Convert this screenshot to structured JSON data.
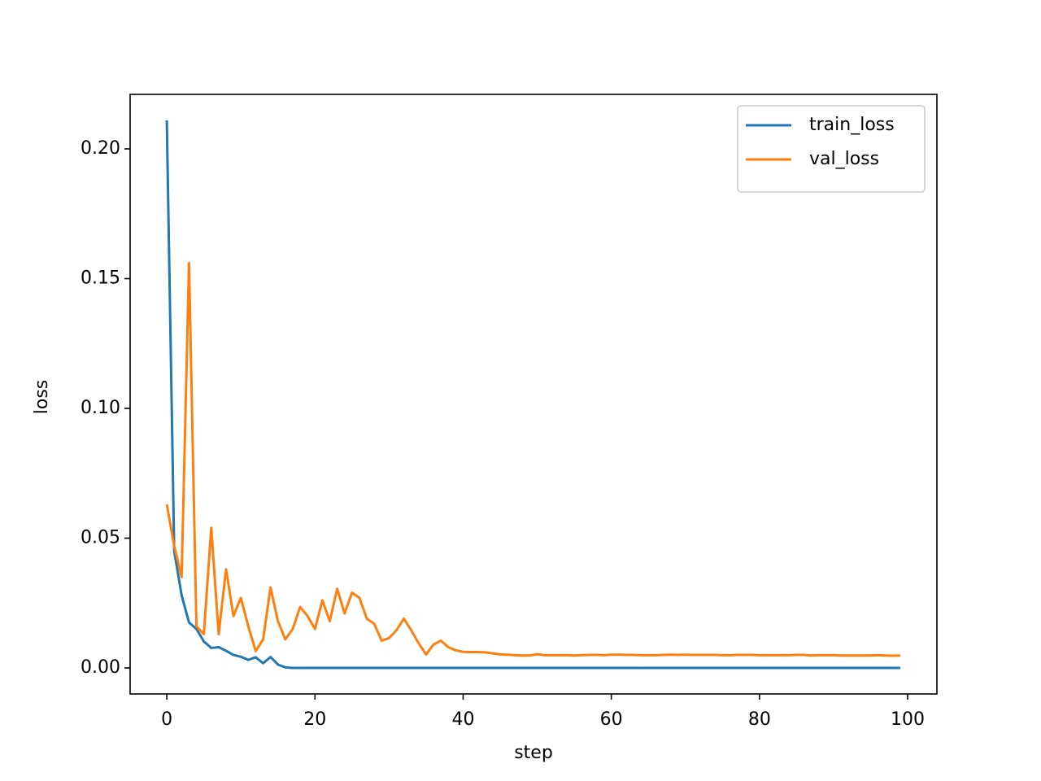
{
  "chart_data": {
    "type": "line",
    "x_label": "step",
    "y_label": "loss",
    "x": [
      0,
      1,
      2,
      3,
      4,
      5,
      6,
      7,
      8,
      9,
      10,
      11,
      12,
      13,
      14,
      15,
      16,
      17,
      18,
      19,
      20,
      21,
      22,
      23,
      24,
      25,
      26,
      27,
      28,
      29,
      30,
      31,
      32,
      33,
      34,
      35,
      36,
      37,
      38,
      39,
      40,
      41,
      42,
      43,
      44,
      45,
      46,
      47,
      48,
      49,
      50,
      51,
      52,
      53,
      54,
      55,
      56,
      57,
      58,
      59,
      60,
      61,
      62,
      63,
      64,
      65,
      66,
      67,
      68,
      69,
      70,
      71,
      72,
      73,
      74,
      75,
      76,
      77,
      78,
      79,
      80,
      81,
      82,
      83,
      84,
      85,
      86,
      87,
      88,
      89,
      90,
      91,
      92,
      93,
      94,
      95,
      96,
      97,
      98,
      99
    ],
    "series": [
      {
        "name": "train_loss",
        "color": "#1f77b4",
        "values": [
          0.211,
          0.045,
          0.028,
          0.0175,
          0.015,
          0.0102,
          0.0077,
          0.008,
          0.0066,
          0.005,
          0.0043,
          0.0031,
          0.0041,
          0.0018,
          0.0042,
          0.0013,
          0.0002,
          0,
          0,
          0,
          0,
          0,
          0,
          0,
          0,
          0,
          0,
          0,
          0,
          0,
          0,
          0,
          0,
          0,
          0,
          0,
          0,
          0,
          0,
          0,
          0,
          0,
          0,
          0,
          0,
          0,
          0,
          0,
          0,
          0,
          0,
          0,
          0,
          0,
          0,
          0,
          0,
          0,
          0,
          0,
          0,
          0,
          0,
          0,
          0,
          0,
          0,
          0,
          0,
          0,
          0,
          0,
          0,
          0,
          0,
          0,
          0,
          0,
          0,
          0,
          0,
          0,
          0,
          0,
          0,
          0,
          0,
          0,
          0,
          0,
          0,
          0,
          0,
          0,
          0,
          0,
          0,
          0,
          0,
          0
        ]
      },
      {
        "name": "val_loss",
        "color": "#ff7f0e",
        "values": [
          0.063,
          0.047,
          0.035,
          0.156,
          0.016,
          0.013,
          0.054,
          0.013,
          0.038,
          0.02,
          0.027,
          0.016,
          0.0065,
          0.011,
          0.031,
          0.018,
          0.011,
          0.015,
          0.0235,
          0.02,
          0.015,
          0.026,
          0.018,
          0.0305,
          0.021,
          0.029,
          0.027,
          0.019,
          0.017,
          0.0105,
          0.0115,
          0.0145,
          0.019,
          0.0145,
          0.0095,
          0.0052,
          0.009,
          0.0105,
          0.008,
          0.0068,
          0.0062,
          0.0061,
          0.0061,
          0.006,
          0.0056,
          0.0052,
          0.0051,
          0.0049,
          0.0048,
          0.0048,
          0.0053,
          0.0049,
          0.0049,
          0.0049,
          0.0049,
          0.0048,
          0.0049,
          0.005,
          0.005,
          0.0049,
          0.0051,
          0.0051,
          0.005,
          0.005,
          0.0049,
          0.0049,
          0.0049,
          0.005,
          0.0051,
          0.005,
          0.0051,
          0.005,
          0.005,
          0.005,
          0.005,
          0.0049,
          0.0049,
          0.005,
          0.005,
          0.005,
          0.0049,
          0.0049,
          0.0049,
          0.0049,
          0.0049,
          0.005,
          0.005,
          0.0048,
          0.0049,
          0.0049,
          0.0049,
          0.0048,
          0.0048,
          0.0048,
          0.0048,
          0.0048,
          0.0049,
          0.0048,
          0.0047,
          0.0048
        ]
      }
    ],
    "xlim": [
      -4.95,
      103.95
    ],
    "ylim": [
      -0.01003,
      0.221
    ],
    "xticks": [
      0,
      20,
      40,
      60,
      80,
      100
    ],
    "yticks": [
      {
        "value": 0,
        "label": "0.00"
      },
      {
        "value": 0.05,
        "label": "0.05"
      },
      {
        "value": 0.1,
        "label": "0.10"
      },
      {
        "value": 0.15,
        "label": "0.15"
      },
      {
        "value": 0.2,
        "label": "0.20"
      }
    ],
    "legend": "upper right"
  }
}
